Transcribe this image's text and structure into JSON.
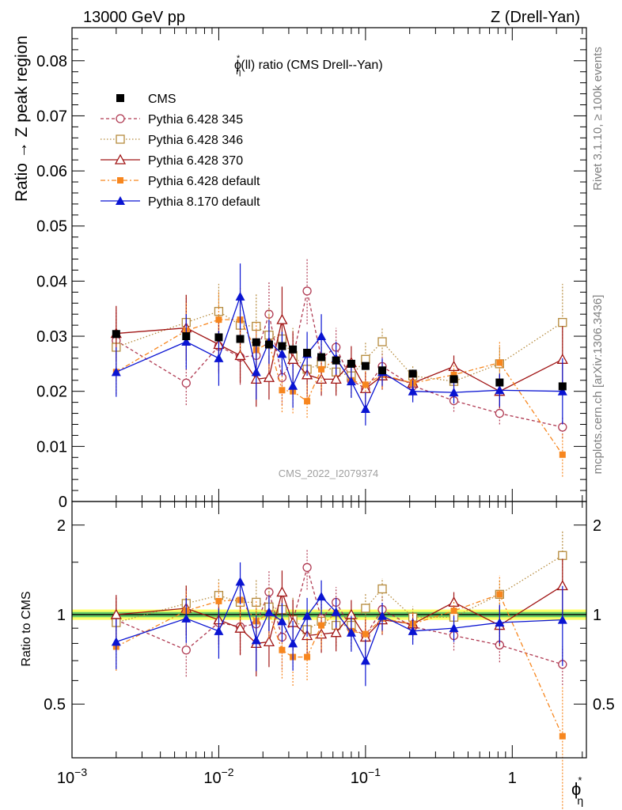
{
  "header": {
    "left": "13000 GeV pp",
    "right": "Z (Drell-Yan)"
  },
  "side_text": {
    "rivet": "Rivet 3.1.10, ≥ 100k events",
    "url": "mcplots.cern.ch [arXiv:1306.3436]"
  },
  "watermark": "CMS_2022_I2079374",
  "colors": {
    "cms": "#000000",
    "p345": "#b03a52",
    "p346": "#b58a3c",
    "p370": "#a01414",
    "p6def": "#f7861e",
    "p8def": "#0a14d2",
    "band_outer": "#ffff66",
    "band_inner": "#66cc66"
  },
  "chart_data": [
    {
      "type": "scatter",
      "panel": "main",
      "title": "ϕη*(ll) ratio (CMS Drell--Yan)",
      "title_base": "ϕ",
      "title_sup": "*",
      "title_sub": "η",
      "title_rest": "(ll) ratio (CMS Drell--Yan)",
      "ylabel": "Ratio → Z peak region",
      "xlabel_base": "ϕ",
      "xlabel_sup": "*",
      "xlabel_sub": "η",
      "xscale": "log",
      "xlim": [
        0.001,
        3.2
      ],
      "ylim": [
        0,
        0.086
      ],
      "yticks": [
        0,
        0.01,
        0.02,
        0.03,
        0.04,
        0.05,
        0.06,
        0.07,
        0.08
      ],
      "ytick_labels": [
        "0",
        "0.01",
        "0.02",
        "0.03",
        "0.04",
        "0.05",
        "0.06",
        "0.07",
        "0.08"
      ],
      "legend_position": "top-left",
      "x": [
        0.002,
        0.006,
        0.01,
        0.014,
        0.018,
        0.022,
        0.027,
        0.032,
        0.04,
        0.05,
        0.063,
        0.08,
        0.1,
        0.13,
        0.21,
        0.4,
        0.82,
        2.2
      ],
      "series": [
        {
          "name": "CMS",
          "key": "cms",
          "style": "data",
          "values": [
            0.0304,
            0.03,
            0.0298,
            0.0295,
            0.0289,
            0.0285,
            0.0282,
            0.0276,
            0.027,
            0.0262,
            0.0256,
            0.025,
            0.0246,
            0.0238,
            0.0232,
            0.0222,
            0.0216,
            0.0209
          ],
          "errors": [
            0.0006,
            0.0006,
            0.0006,
            0.0006,
            0.0006,
            0.0006,
            0.0006,
            0.0006,
            0.0006,
            0.0006,
            0.0006,
            0.0006,
            0.0006,
            0.0006,
            0.0006,
            0.0006,
            0.0006,
            0.0006
          ]
        },
        {
          "name": "Pythia 6.428 345",
          "key": "p345",
          "style": "open-circle",
          "dash": "4,3",
          "values": [
            0.0292,
            0.0215,
            0.0282,
            0.0262,
            0.0265,
            0.034,
            0.0225,
            0.026,
            0.0382,
            0.026,
            0.028,
            0.022,
            0.0205,
            0.0245,
            0.021,
            0.0183,
            0.016,
            0.0135
          ],
          "errors": [
            0.0055,
            0.004,
            0.005,
            0.005,
            0.005,
            0.006,
            0.005,
            0.005,
            0.006,
            0.004,
            0.0035,
            0.003,
            0.003,
            0.0025,
            0.002,
            0.002,
            0.002,
            0.002
          ]
        },
        {
          "name": "Pythia 6.428 346",
          "key": "p346",
          "style": "open-square",
          "dash": "1.5,2.5",
          "values": [
            0.028,
            0.0325,
            0.0345,
            0.032,
            0.0318,
            0.0302,
            0.0295,
            0.0265,
            0.024,
            0.025,
            0.0235,
            0.0228,
            0.0258,
            0.029,
            0.0228,
            0.0218,
            0.025,
            0.0325
          ],
          "errors": [
            0.005,
            0.005,
            0.005,
            0.006,
            0.006,
            0.005,
            0.005,
            0.005,
            0.004,
            0.004,
            0.0035,
            0.003,
            0.003,
            0.0025,
            0.002,
            0.002,
            0.003,
            0.007
          ]
        },
        {
          "name": "Pythia 6.428 370",
          "key": "p370",
          "style": "open-triangle",
          "dash": "",
          "values": [
            0.0305,
            0.0315,
            0.0285,
            0.0265,
            0.0222,
            0.0225,
            0.033,
            0.0258,
            0.023,
            0.0222,
            0.0222,
            0.0252,
            0.0205,
            0.0228,
            0.0215,
            0.0245,
            0.02,
            0.0258
          ],
          "errors": [
            0.005,
            0.006,
            0.005,
            0.005,
            0.005,
            0.004,
            0.006,
            0.005,
            0.004,
            0.003,
            0.003,
            0.003,
            0.003,
            0.0025,
            0.002,
            0.002,
            0.003,
            0.006
          ]
        },
        {
          "name": "Pythia 6.428 default",
          "key": "p6def",
          "style": "filled-square-small",
          "dash": "6,3,2,3",
          "values": [
            0.0235,
            0.031,
            0.033,
            0.033,
            0.0275,
            0.0288,
            0.0202,
            0.02,
            0.0182,
            0.024,
            0.0258,
            0.022,
            0.0212,
            0.023,
            0.0215,
            0.023,
            0.0252,
            0.0085
          ],
          "errors": [
            0.004,
            0.005,
            0.005,
            0.006,
            0.005,
            0.005,
            0.004,
            0.004,
            0.003,
            0.004,
            0.003,
            0.003,
            0.003,
            0.0025,
            0.002,
            0.002,
            0.004,
            0.004
          ]
        },
        {
          "name": "Pythia 8.170 default",
          "key": "p8def",
          "style": "filled-triangle",
          "dash": "",
          "values": [
            0.0235,
            0.029,
            0.026,
            0.0372,
            0.0235,
            0.029,
            0.0268,
            0.021,
            0.0268,
            0.03,
            0.026,
            0.0218,
            0.0168,
            0.0235,
            0.02,
            0.0198,
            0.0202,
            0.02
          ],
          "errors": [
            0.0045,
            0.005,
            0.005,
            0.006,
            0.005,
            0.004,
            0.004,
            0.004,
            0.004,
            0.004,
            0.003,
            0.003,
            0.003,
            0.0025,
            0.002,
            0.002,
            0.003,
            0.006
          ]
        }
      ]
    },
    {
      "type": "scatter",
      "panel": "ratio",
      "ylabel": "Ratio to CMS",
      "xscale": "log",
      "xlim": [
        0.001,
        3.2
      ],
      "ylim": [
        0.33,
        2.4
      ],
      "yscale": "log",
      "yticks": [
        0.5,
        1,
        2
      ],
      "ytick_labels": [
        "0.5",
        "1",
        "2"
      ],
      "xticks": [
        0.001,
        0.01,
        0.1,
        1
      ],
      "xtick_base": "10",
      "xtick_exponents": [
        "−3",
        "−2",
        "−1",
        ""
      ],
      "xtick_labels": [
        "10−3",
        "10−2",
        "10−1",
        "1"
      ],
      "band_inner": [
        0.98,
        1.02
      ],
      "band_outer": [
        0.96,
        1.04
      ],
      "x": [
        0.002,
        0.006,
        0.01,
        0.014,
        0.018,
        0.022,
        0.027,
        0.032,
        0.04,
        0.05,
        0.063,
        0.08,
        0.1,
        0.13,
        0.21,
        0.4,
        0.82,
        2.2
      ],
      "series": [
        {
          "key": "p345",
          "values": [
            0.96,
            0.76,
            0.94,
            0.91,
            0.93,
            1.19,
            0.84,
            0.95,
            1.44,
            0.97,
            1.1,
            0.9,
            0.85,
            1.04,
            0.91,
            0.85,
            0.79,
            0.68
          ]
        },
        {
          "key": "p346",
          "values": [
            0.94,
            1.09,
            1.16,
            1.1,
            1.1,
            1.06,
            1.04,
            0.96,
            0.89,
            0.95,
            0.92,
            0.92,
            1.05,
            1.22,
            0.98,
            0.98,
            1.17,
            1.58
          ]
        },
        {
          "key": "p370",
          "values": [
            1.0,
            1.05,
            0.96,
            0.9,
            0.8,
            0.81,
            1.19,
            0.94,
            0.85,
            0.86,
            0.87,
            1.0,
            0.84,
            0.96,
            0.93,
            1.1,
            0.92,
            1.25
          ]
        },
        {
          "key": "p6def",
          "values": [
            0.78,
            1.03,
            1.11,
            1.12,
            0.95,
            1.01,
            0.76,
            0.72,
            0.72,
            0.92,
            1.01,
            0.88,
            0.86,
            0.97,
            0.93,
            1.03,
            1.17,
            0.39
          ]
        },
        {
          "key": "p8def",
          "values": [
            0.81,
            0.97,
            0.88,
            1.29,
            0.82,
            1.02,
            0.95,
            0.8,
            0.99,
            1.15,
            1.02,
            0.87,
            0.7,
            0.99,
            0.88,
            0.9,
            0.94,
            0.96
          ]
        }
      ]
    }
  ]
}
